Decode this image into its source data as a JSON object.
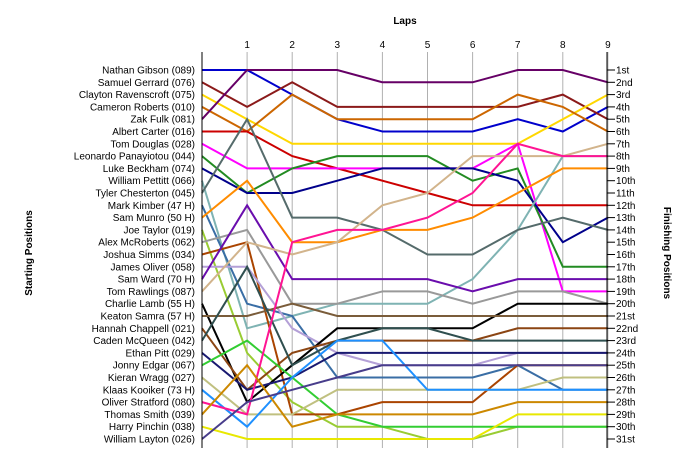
{
  "chart_data": {
    "type": "line",
    "title": "",
    "top_axis_label": "Laps",
    "left_axis_label": "Starting Positions",
    "right_axis_label": "Finishing Positions",
    "laps": [
      "1",
      "2",
      "3",
      "4",
      "5",
      "6",
      "7",
      "8",
      "9"
    ],
    "finish_labels": [
      "1st",
      "2nd",
      "3rd",
      "4th",
      "5th",
      "6th",
      "7th",
      "8th",
      "9th",
      "10th",
      "11th",
      "12th",
      "13th",
      "14th",
      "15th",
      "16th",
      "17th",
      "18th",
      "19th",
      "20th",
      "21st",
      "22nd",
      "23rd",
      "24th",
      "25th",
      "26th",
      "27th",
      "28th",
      "29th",
      "30th",
      "31st"
    ],
    "grid": "vertical lines at each lap",
    "series": [
      {
        "name": "Nathan Gibson (089)",
        "color": "#0000cc",
        "positions": [
          1,
          3,
          5,
          6,
          6,
          6,
          5,
          6,
          4
        ]
      },
      {
        "name": "Samuel Gerrard (076)",
        "color": "#8b1a1a",
        "positions": [
          4,
          2,
          4,
          4,
          4,
          4,
          4,
          3,
          5
        ]
      },
      {
        "name": "Clayton Ravenscroft (075)",
        "color": "#ffd700",
        "positions": [
          5,
          7,
          7,
          7,
          7,
          7,
          7,
          5,
          3
        ]
      },
      {
        "name": "Cameron Roberts (010)",
        "color": "#cc6600",
        "positions": [
          6,
          3,
          5,
          5,
          5,
          5,
          3,
          4,
          6
        ]
      },
      {
        "name": "Zak Fulk (081)",
        "color": "#660066",
        "positions": [
          1,
          1,
          1,
          2,
          2,
          2,
          1,
          1,
          2
        ]
      },
      {
        "name": "Albert Carter (016)",
        "color": "#cc0000",
        "positions": [
          6,
          8,
          9,
          10,
          11,
          12,
          12,
          12,
          12
        ]
      },
      {
        "name": "Tom Douglas (028)",
        "color": "#ff00ff",
        "positions": [
          9,
          9,
          9,
          9,
          9,
          9,
          7,
          19,
          19
        ]
      },
      {
        "name": "Leonardo Panayiotou (044)",
        "color": "#228b22",
        "positions": [
          11,
          9,
          8,
          8,
          8,
          10,
          9,
          17,
          17
        ]
      },
      {
        "name": "Luke Beckham (074)",
        "color": "#00008b",
        "positions": [
          11,
          11,
          10,
          9,
          9,
          9,
          10,
          15,
          13
        ]
      },
      {
        "name": "William Pettitt (066)",
        "color": "#7fb3b3",
        "positions": [
          22,
          21,
          20,
          20,
          20,
          18,
          14,
          8,
          8
        ]
      },
      {
        "name": "Tyler Chesterton (045)",
        "color": "#556b6b",
        "positions": [
          5,
          13,
          13,
          14,
          16,
          16,
          14,
          13,
          14
        ]
      },
      {
        "name": "Mark Kimber (47 H)",
        "color": "#3a6ea5",
        "positions": [
          20,
          21,
          26,
          26,
          26,
          26,
          25,
          27,
          27
        ]
      },
      {
        "name": "Sam Munro (50 H)",
        "color": "#ff8c00",
        "positions": [
          10,
          15,
          15,
          14,
          14,
          13,
          11,
          9,
          9
        ]
      },
      {
        "name": "Joe Taylor (019)",
        "color": "#99cc33",
        "positions": [
          24,
          28,
          30,
          30,
          31,
          31,
          30,
          30,
          30
        ]
      },
      {
        "name": "Alex McRoberts (062)",
        "color": "#999999",
        "positions": [
          14,
          20,
          20,
          19,
          19,
          20,
          19,
          19,
          20
        ]
      },
      {
        "name": "Joshua Simms (034)",
        "color": "#aa4400",
        "positions": [
          15,
          29,
          29,
          28,
          28,
          28,
          25,
          25,
          25
        ]
      },
      {
        "name": "James Oliver (058)",
        "color": "#b4a0d7",
        "positions": [
          17,
          22,
          24,
          25,
          25,
          25,
          24,
          24,
          24
        ]
      },
      {
        "name": "Sam Ward (70 H)",
        "color": "#6a0dad",
        "positions": [
          12,
          18,
          18,
          18,
          18,
          19,
          18,
          18,
          18
        ]
      },
      {
        "name": "Tom Rawlings (087)",
        "color": "#d2b48c",
        "positions": [
          15,
          16,
          15,
          12,
          11,
          8,
          8,
          8,
          7
        ]
      },
      {
        "name": "Charlie Lamb (55 H)",
        "color": "#000000",
        "positions": [
          28,
          25,
          22,
          22,
          22,
          22,
          20,
          20,
          20
        ]
      },
      {
        "name": "Keaton Samra (57 H)",
        "color": "#7a5c3a",
        "positions": [
          21,
          20,
          21,
          21,
          21,
          21,
          21,
          21,
          21
        ]
      },
      {
        "name": "Hannah Chappell (021)",
        "color": "#8b4513",
        "positions": [
          27,
          24,
          23,
          23,
          23,
          23,
          22,
          22,
          22
        ]
      },
      {
        "name": "Caden McQueen (042)",
        "color": "#2f4f4f",
        "positions": [
          17,
          25,
          23,
          22,
          22,
          23,
          23,
          23,
          23
        ]
      },
      {
        "name": "Ethan Pitt (029)",
        "color": "#191970",
        "positions": [
          27,
          26,
          24,
          24,
          24,
          24,
          24,
          24,
          24
        ]
      },
      {
        "name": "Jonny Edgar (067)",
        "color": "#32cd32",
        "positions": [
          23,
          26,
          29,
          30,
          30,
          30,
          30,
          30,
          30
        ]
      },
      {
        "name": "Kieran Wragg (027)",
        "color": "#c0c080",
        "positions": [
          29,
          29,
          27,
          27,
          27,
          27,
          27,
          26,
          26
        ]
      },
      {
        "name": "Klaas Kooiker (73 H)",
        "color": "#1e90ff",
        "positions": [
          30,
          26,
          23,
          23,
          27,
          27,
          27,
          27,
          27
        ]
      },
      {
        "name": "Oliver Stratford (080)",
        "color": "#ff1493",
        "positions": [
          29,
          15,
          14,
          14,
          13,
          11,
          7,
          8,
          8
        ]
      },
      {
        "name": "Thomas Smith (039)",
        "color": "#cc8800",
        "positions": [
          25,
          30,
          29,
          29,
          29,
          29,
          28,
          28,
          28
        ]
      },
      {
        "name": "Harry Pinchin (038)",
        "color": "#e8e800",
        "positions": [
          31,
          31,
          31,
          31,
          31,
          31,
          29,
          29,
          29
        ]
      },
      {
        "name": "William Layton (026)",
        "color": "#483d8b",
        "positions": [
          28,
          27,
          26,
          25,
          25,
          25,
          25,
          25,
          25
        ]
      }
    ]
  }
}
